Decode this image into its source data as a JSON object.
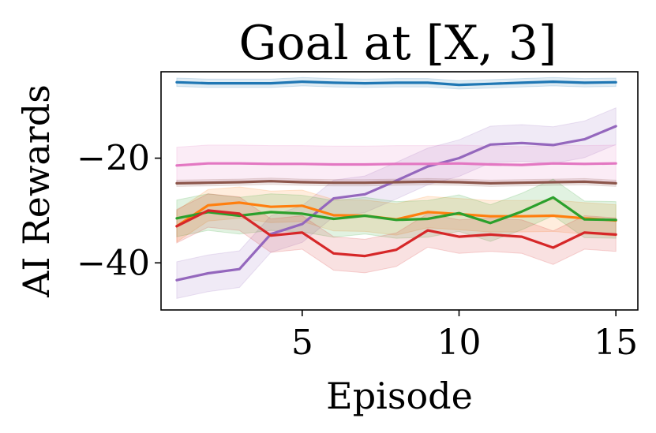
{
  "chart_data": {
    "type": "line",
    "title": "Goal at [X, 3]",
    "xlabel": "Episode",
    "ylabel": "AI Rewards",
    "xlim": [
      0.5,
      15.7
    ],
    "ylim": [
      -49,
      -3.5
    ],
    "xticks": [
      5,
      10,
      15
    ],
    "xtick_labels": [
      "5",
      "10",
      "15"
    ],
    "yticks": [
      -20,
      -40
    ],
    "ytick_labels": [
      "−20",
      "−40"
    ],
    "grid": false,
    "legend": "none",
    "x": [
      1,
      2,
      3,
      4,
      5,
      6,
      7,
      8,
      9,
      10,
      11,
      12,
      13,
      14,
      15
    ],
    "series": [
      {
        "color": "#1f77b4",
        "values": [
          -5.5,
          -5.7,
          -5.7,
          -5.7,
          -5.4,
          -5.6,
          -5.7,
          -5.6,
          -5.6,
          -6.0,
          -5.8,
          -5.6,
          -5.4,
          -5.6,
          -5.5
        ],
        "band": 0.8
      },
      {
        "color": "#9467bd",
        "values": [
          -43.3,
          -42.0,
          -41.2,
          -34.5,
          -32.6,
          -27.7,
          -26.9,
          -24.3,
          -21.6,
          -20.0,
          -17.4,
          -17.1,
          -17.5,
          -16.4,
          -13.9
        ],
        "band": 3.5
      },
      {
        "color": "#e377c2",
        "values": [
          -21.4,
          -21.0,
          -21.0,
          -21.1,
          -21.1,
          -21.2,
          -21.2,
          -21.1,
          -21.1,
          -21.0,
          -21.2,
          -21.3,
          -21.0,
          -21.1,
          -21.0
        ],
        "band": 3.5
      },
      {
        "color": "#8c564b",
        "values": [
          -24.8,
          -24.7,
          -24.6,
          -24.4,
          -24.6,
          -24.7,
          -24.7,
          -24.6,
          -24.5,
          -24.6,
          -24.8,
          -24.7,
          -24.6,
          -24.5,
          -24.8
        ],
        "band": 0.6
      },
      {
        "color": "#ff7f0e",
        "values": [
          -33.0,
          -29.0,
          -28.5,
          -29.3,
          -29.1,
          -30.9,
          -31.0,
          -31.7,
          -30.3,
          -30.7,
          -31.1,
          -31.1,
          -31.0,
          -31.5,
          -31.9
        ],
        "band": 3.0
      },
      {
        "color": "#2ca02c",
        "values": [
          -31.5,
          -30.3,
          -31.0,
          -30.3,
          -30.6,
          -31.6,
          -31.0,
          -31.8,
          -31.6,
          -30.5,
          -32.4,
          -30.2,
          -27.5,
          -31.7,
          -31.8
        ],
        "band": 3.5
      },
      {
        "color": "#d62728",
        "values": [
          -33.0,
          -30.0,
          -30.6,
          -34.8,
          -34.2,
          -38.2,
          -38.7,
          -37.5,
          -33.8,
          -35.0,
          -34.6,
          -35.0,
          -37.1,
          -34.2,
          -34.6
        ],
        "band": 3.2
      }
    ]
  }
}
